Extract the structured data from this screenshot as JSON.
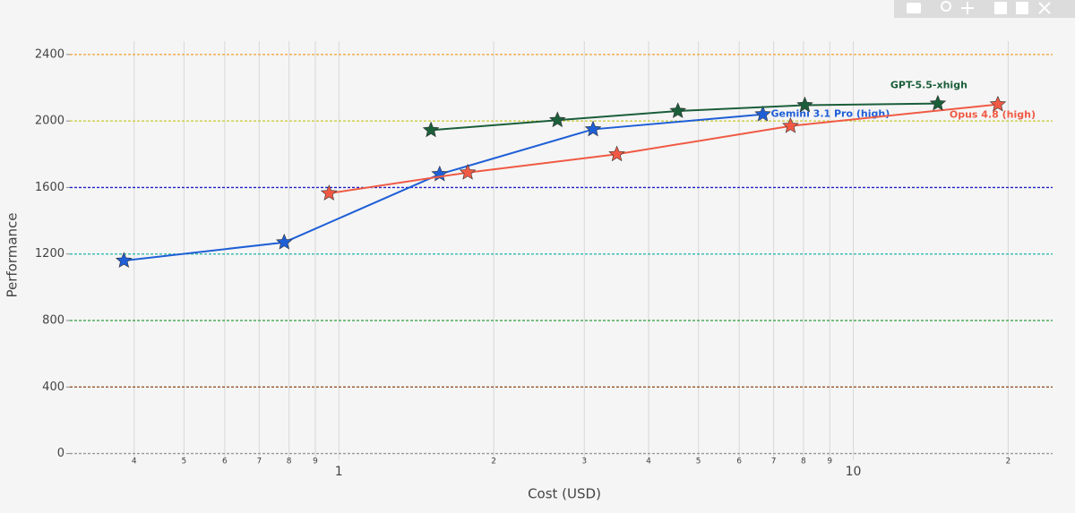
{
  "chart_data": {
    "type": "line",
    "x_label": "Cost (USD)",
    "y_label": "Performance",
    "log_x": true,
    "xlim": [
      0.3,
      24.4
    ],
    "xticks": [
      {
        "value": 0.4,
        "label": "4"
      },
      {
        "value": 0.5,
        "label": "5"
      },
      {
        "value": 0.6,
        "label": "6"
      },
      {
        "value": 0.7,
        "label": "7"
      },
      {
        "value": 0.8,
        "label": "8"
      },
      {
        "value": 0.9,
        "label": "9"
      },
      1,
      2,
      3,
      4,
      5,
      6,
      7,
      8,
      9,
      10,
      {
        "value": 20,
        "label": "2"
      }
    ],
    "ylim": [
      -40,
      2480
    ],
    "yticks": [
      0,
      400,
      800,
      1200,
      1600,
      2000,
      2400
    ],
    "grid_colors": [
      "#999999",
      "#8b4513",
      "#2e9e3e",
      "#20b2aa",
      "#2020c8",
      "#c8c832",
      "#f0a030"
    ],
    "series": [
      {
        "name": "Gemini 3.1 Pro (high)",
        "color": "#1f5fd6",
        "label_position": "right",
        "x": [
          0.382,
          0.783,
          1.57,
          3.12,
          6.67
        ],
        "values": [
          1160,
          1270,
          1680,
          1950,
          2040
        ]
      },
      {
        "name": "Opus 4.8 (high)",
        "color": "#f05a44",
        "label_position": "bottom",
        "x": [
          0.957,
          1.78,
          3.47,
          7.55,
          19.1
        ],
        "values": [
          1565,
          1690,
          1800,
          1970,
          2100
        ]
      },
      {
        "name": "GPT-5.5-xhigh",
        "color": "#1b5e3a",
        "label_position": "top",
        "x": [
          1.51,
          2.66,
          4.56,
          8.05,
          14.6
        ],
        "values": [
          1945,
          2005,
          2060,
          2095,
          2105
        ]
      }
    ]
  }
}
